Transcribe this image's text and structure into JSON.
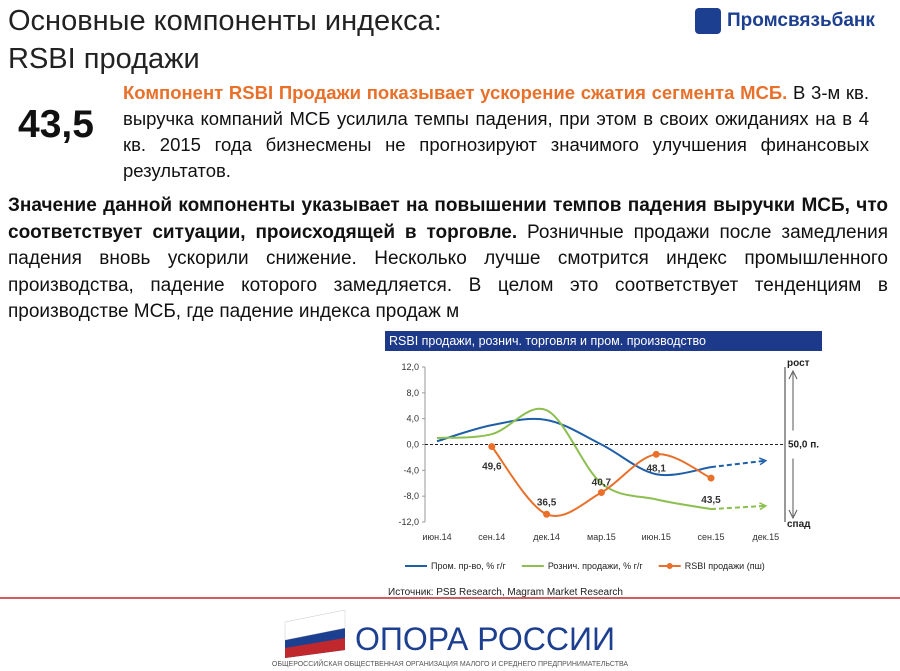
{
  "header": {
    "title_lines": [
      "Основные компоненты индекса:",
      "RSBI продажи"
    ],
    "logo": "Промсвязьбанк"
  },
  "summary": {
    "value": "43,5",
    "highlight": "Компонент RSBI Продажи показывает ускорение сжатия сегмента МСБ.",
    "text": "В 3-м кв. выручка компаний МСБ усилила темпы падения,  при этом в своих ожиданиях на в 4 кв. 2015 года бизнесмены не прогнозируют значимого улучшения финансовых результатов."
  },
  "body": {
    "bold": "Значение данной компоненты указывает на повышении темпов падения выручки МСБ, что соответствует ситуации, происходящей в торговле.",
    "text": "Розничные продажи после замедления падения вновь ускорили снижение. Несколько лучше смотрится индекс промышленного производства, падение которого замедляется. В целом это соответствует тенденциям в производстве МСБ, где падение индекса продаж м"
  },
  "chart_data": {
    "type": "line",
    "title": "RSBI продажи, рознич. торговля и пром. производство",
    "categories": [
      "июн.14",
      "сен.14",
      "дек.14",
      "мар.15",
      "июн.15",
      "сен.15",
      "дек.15"
    ],
    "series": [
      {
        "name": "Пром. пр-во, % г/г",
        "color": "#1f5fa8",
        "values": [
          0.5,
          3.0,
          3.8,
          0.0,
          -4.6,
          -3.5,
          null
        ]
      },
      {
        "name": "Рознич. продажи, % г/г",
        "color": "#8cbf4f",
        "values": [
          1.0,
          1.6,
          5.3,
          -6.0,
          -8.5,
          -10.0,
          null
        ]
      },
      {
        "name": "RSBI продажи (пш)",
        "color": "#e8702a",
        "axis": "y2",
        "markers": true,
        "values": [
          null,
          49.6,
          36.5,
          40.7,
          48.1,
          43.5,
          null
        ],
        "value_labels": [
          null,
          "49,6",
          "36,5",
          "40,7",
          "48,1",
          "43,5",
          null
        ]
      },
      {
        "color": "#1f5fa8",
        "dashed": true,
        "values": [
          null,
          null,
          null,
          null,
          null,
          -3.5,
          -2.5
        ]
      },
      {
        "color": "#8cbf4f",
        "dashed": true,
        "values": [
          null,
          null,
          null,
          null,
          null,
          -10.0,
          -9.5
        ]
      }
    ],
    "ylim": [
      -12,
      12
    ],
    "yticks": [
      {
        "value": 12,
        "label": "12,0"
      },
      {
        "value": 8,
        "label": "8,0"
      },
      {
        "value": 4,
        "label": "4,0"
      },
      {
        "value": 0,
        "label": "0,0"
      },
      {
        "value": -4,
        "label": "-4,0"
      },
      {
        "value": -8,
        "label": "-8,0"
      },
      {
        "value": -12,
        "label": "-12,0"
      }
    ],
    "y2lim": [
      35,
      65
    ],
    "y2ticks": [
      {
        "value": 50,
        "label": "50,0 п."
      }
    ],
    "annotations": {
      "top": "рост",
      "bottom": "спад"
    },
    "source": "Источник: PSB Research, Magram Market Research"
  },
  "footer": {
    "org": "ОПОРА РОССИИ",
    "subtitle": "ОБЩЕРОССИЙСКАЯ ОБЩЕСТВЕННАЯ ОРГАНИЗАЦИЯ МАЛОГО И СРЕДНЕГО ПРЕДПРИНИМАТЕЛЬСТВА"
  }
}
